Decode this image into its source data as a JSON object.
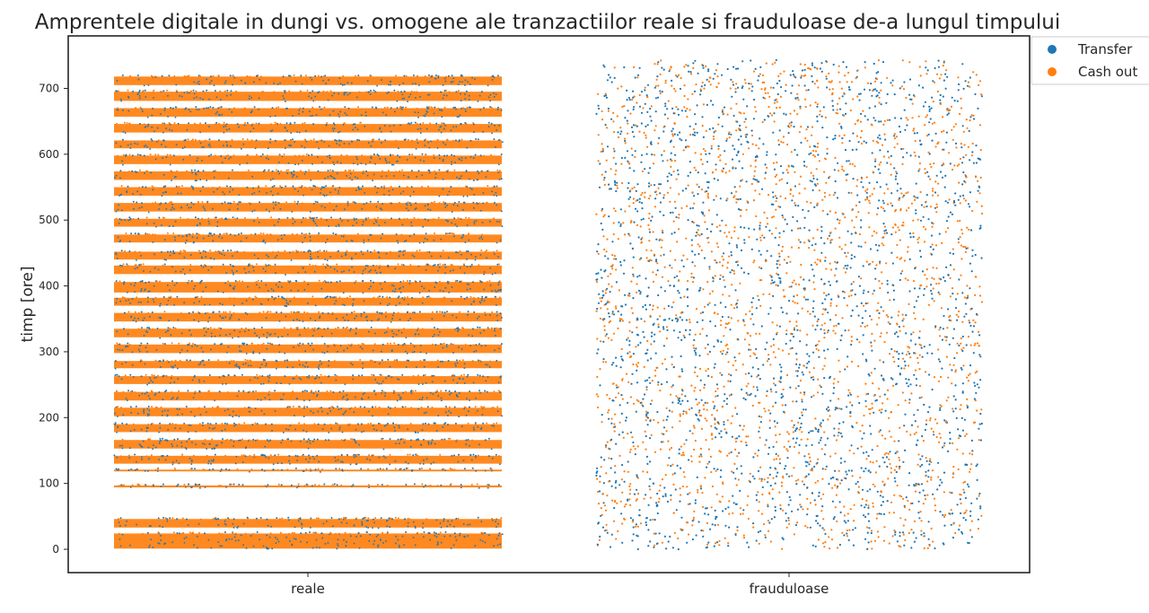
{
  "chart_data": {
    "type": "scatter",
    "title": "Amprentele digitale in dungi vs. omogene ale tranzactiilor reale si frauduloase de-a lungul timpului",
    "xlabel": "",
    "ylabel": "timp [ore]",
    "categories": [
      "reale",
      "frauduloase"
    ],
    "ylim": [
      0,
      743
    ],
    "yticks": [
      0,
      100,
      200,
      300,
      400,
      500,
      600,
      700
    ],
    "grid": false,
    "legend_position": "top-right",
    "series": [
      {
        "name": "Transfer",
        "color": "#1f77b4"
      },
      {
        "name": "Cash out",
        "color": "#ff7f0e"
      }
    ],
    "reale": {
      "description_of_distribution": "strip plot with horizontal bands of transactions",
      "bands_hours": [
        [
          1,
          24
        ],
        [
          33,
          46
        ],
        [
          94,
          97
        ],
        [
          119,
          121
        ],
        [
          130,
          142
        ],
        [
          153,
          166
        ],
        [
          178,
          190
        ],
        [
          202,
          215
        ],
        [
          226,
          239
        ],
        [
          251,
          263
        ],
        [
          275,
          286
        ],
        [
          298,
          311
        ],
        [
          322,
          335
        ],
        [
          346,
          359
        ],
        [
          370,
          382
        ],
        [
          390,
          406
        ],
        [
          418,
          431
        ],
        [
          440,
          452
        ],
        [
          466,
          478
        ],
        [
          490,
          502
        ],
        [
          513,
          526
        ],
        [
          537,
          550
        ],
        [
          561,
          574
        ],
        [
          585,
          598
        ],
        [
          609,
          621
        ],
        [
          633,
          646
        ],
        [
          657,
          670
        ],
        [
          681,
          695
        ],
        [
          705,
          718
        ]
      ],
      "y_range": [
        0,
        718
      ]
    },
    "frauduloase": {
      "description_of_distribution": "uniform spread across all hours",
      "y_range": [
        0,
        743
      ]
    }
  }
}
